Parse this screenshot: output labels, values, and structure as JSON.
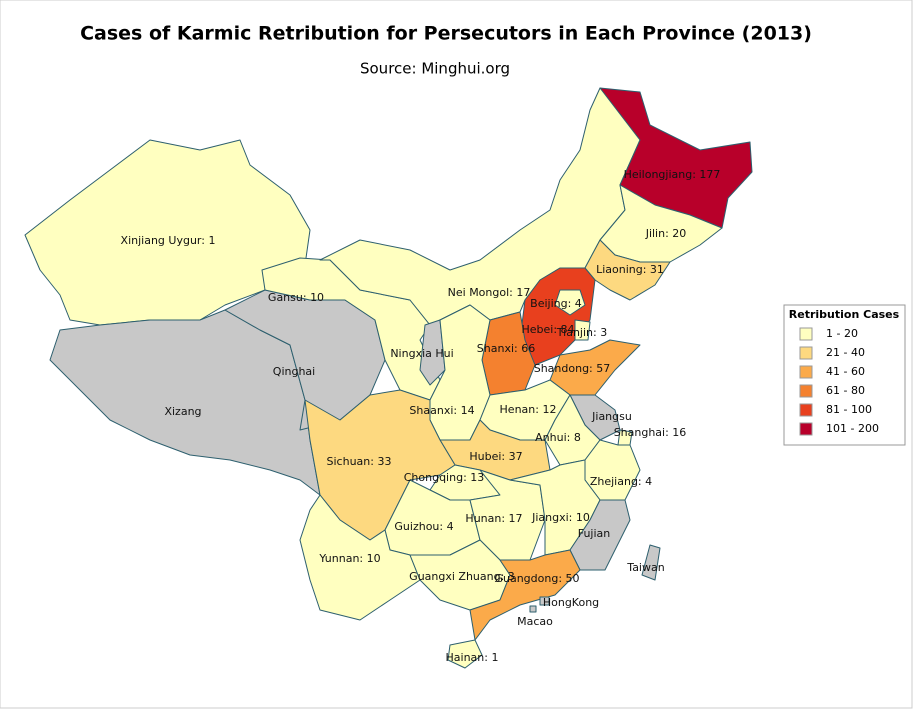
{
  "chart_data": {
    "type": "choropleth",
    "title": "Cases of Karmic Retribution for Persecutors in Each Province (2013)",
    "subtitle": "Source: Minghui.org",
    "legend_title": "Retribution Cases",
    "legend_position": "right",
    "no_data_color": "#c8c8c8",
    "bins": [
      {
        "min": 1,
        "max": 20,
        "label": "1 - 20",
        "color": "#ffffc0"
      },
      {
        "min": 21,
        "max": 40,
        "label": "21 - 40",
        "color": "#fdd980"
      },
      {
        "min": 41,
        "max": 60,
        "label": "41 - 60",
        "color": "#fbaa4a"
      },
      {
        "min": 61,
        "max": 80,
        "label": "61 - 80",
        "color": "#f4812f"
      },
      {
        "min": 81,
        "max": 100,
        "label": "81 - 100",
        "color": "#e8401e"
      },
      {
        "min": 101,
        "max": 200,
        "label": "101 - 200",
        "color": "#b8002a"
      }
    ],
    "regions": [
      {
        "label": "Xinjiang Uygur: 1",
        "value": 1
      },
      {
        "label": "Xizang",
        "value": null
      },
      {
        "label": "Qinghai",
        "value": null
      },
      {
        "label": "Gansu: 10",
        "value": 10
      },
      {
        "label": "Nei Mongol: 17",
        "value": 17
      },
      {
        "label": "Heilongjiang: 177",
        "value": 177
      },
      {
        "label": "Jilin: 20",
        "value": 20
      },
      {
        "label": "Liaoning: 31",
        "value": 31
      },
      {
        "label": "Hebei: 84",
        "value": 84
      },
      {
        "label": "Beijing: 4",
        "value": 4
      },
      {
        "label": "Tianjin: 3",
        "value": 3
      },
      {
        "label": "Shanxi: 66",
        "value": 66
      },
      {
        "label": "Shandong: 57",
        "value": 57
      },
      {
        "label": "Ningxia Hui",
        "value": null
      },
      {
        "label": "Shaanxi: 14",
        "value": 14
      },
      {
        "label": "Henan: 12",
        "value": 12
      },
      {
        "label": "Jiangsu",
        "value": null
      },
      {
        "label": "Shanghai: 16",
        "value": 16
      },
      {
        "label": "Anhui: 8",
        "value": 8
      },
      {
        "label": "Zhejiang: 4",
        "value": 4
      },
      {
        "label": "Hubei: 37",
        "value": 37
      },
      {
        "label": "Sichuan: 33",
        "value": 33
      },
      {
        "label": "Chongqing: 13",
        "value": 13
      },
      {
        "label": "Guizhou: 4",
        "value": 4
      },
      {
        "label": "Hunan: 17",
        "value": 17
      },
      {
        "label": "Jiangxi: 10",
        "value": 10
      },
      {
        "label": "Fujian",
        "value": null
      },
      {
        "label": "Yunnan: 10",
        "value": 10
      },
      {
        "label": "Guangxi Zhuang: 3",
        "value": 3
      },
      {
        "label": "Guangdong: 50",
        "value": 50
      },
      {
        "label": "Hainan: 1",
        "value": 1
      },
      {
        "label": "Taiwan",
        "value": null
      },
      {
        "label": "HongKong",
        "value": null
      },
      {
        "label": "Macao",
        "value": null
      }
    ]
  }
}
